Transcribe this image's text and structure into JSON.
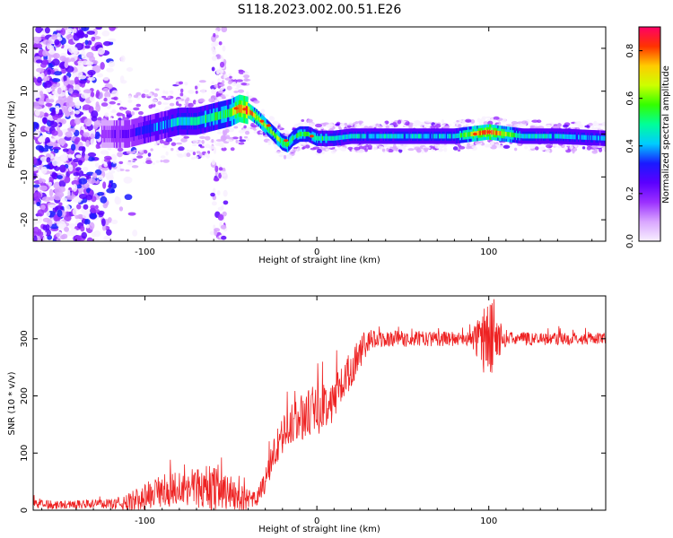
{
  "title": "S118.2023.002.00.51.E26",
  "chart_data": [
    {
      "type": "heatmap",
      "xlabel": "Height of straight line (km)",
      "ylabel": "Frequency (Hz)",
      "xlim": [
        -165,
        168
      ],
      "ylim": [
        -25,
        25
      ],
      "xticks": [
        -100,
        0,
        100
      ],
      "yticks": [
        -20,
        -10,
        0,
        10,
        20
      ],
      "colorbar": {
        "label": "Normalized spectral amplitude",
        "range": [
          0.0,
          0.9
        ],
        "ticks": [
          0.0,
          0.2,
          0.4,
          0.6,
          0.8
        ],
        "colormap": [
          "#f8f0ff",
          "#d9a6ff",
          "#9b30ff",
          "#5b00ff",
          "#1a1aff",
          "#00ccff",
          "#00ff99",
          "#33ff00",
          "#ccff00",
          "#ffcc00",
          "#ff3300",
          "#ff0066"
        ]
      },
      "ridge": {
        "x": [
          -125,
          -110,
          -100,
          -90,
          -80,
          -70,
          -60,
          -50,
          -45,
          -40,
          -35,
          -30,
          -25,
          -20,
          -17,
          -14,
          -10,
          -5,
          0,
          10,
          20,
          40,
          60,
          80,
          90,
          100,
          120,
          140,
          168
        ],
        "y": [
          0,
          0,
          1,
          2,
          3,
          3,
          4,
          5,
          6,
          5.5,
          4,
          2,
          0,
          -2,
          -2.5,
          -1,
          0,
          0,
          -1,
          -1,
          -0.5,
          -0.5,
          -0.5,
          -0.5,
          0,
          0.5,
          -0.5,
          -0.5,
          -1
        ],
        "amplitude": [
          0.15,
          0.2,
          0.3,
          0.35,
          0.4,
          0.4,
          0.45,
          0.5,
          0.7,
          0.75,
          0.6,
          0.55,
          0.5,
          0.55,
          0.5,
          0.45,
          0.5,
          0.45,
          0.45,
          0.4,
          0.38,
          0.38,
          0.38,
          0.38,
          0.6,
          0.75,
          0.4,
          0.38,
          0.35
        ]
      },
      "notes": "broadband noise for x < -110 km spanning all frequencies; narrow band near 0 Hz for x > -20 km"
    },
    {
      "type": "line",
      "xlabel": "Height of straight line (km)",
      "ylabel": "SNR (10 * v/v)",
      "xlim": [
        -165,
        168
      ],
      "ylim": [
        0,
        375
      ],
      "xticks": [
        -100,
        0,
        100
      ],
      "yticks": [
        0,
        100,
        200,
        300
      ],
      "color": "#ee2222",
      "trend": {
        "x": [
          -165,
          -140,
          -110,
          -100,
          -80,
          -60,
          -50,
          -40,
          -35,
          -30,
          -25,
          -20,
          -15,
          -10,
          -5,
          0,
          5,
          10,
          15,
          20,
          25,
          30,
          40,
          60,
          80,
          95,
          100,
          105,
          120,
          140,
          168
        ],
        "y": [
          10,
          10,
          12,
          25,
          40,
          40,
          30,
          15,
          20,
          50,
          100,
          130,
          150,
          160,
          170,
          175,
          185,
          195,
          220,
          250,
          275,
          295,
          300,
          300,
          300,
          300,
          300,
          300,
          300,
          300,
          300
        ]
      },
      "noise_amplitude": {
        "x": [
          -165,
          -120,
          -100,
          -60,
          -45,
          -35,
          -25,
          0,
          25,
          35,
          90,
          95,
          100,
          105,
          110,
          168
        ],
        "a": [
          8,
          8,
          25,
          40,
          25,
          15,
          30,
          45,
          30,
          15,
          12,
          50,
          80,
          40,
          12,
          10
        ]
      }
    }
  ]
}
